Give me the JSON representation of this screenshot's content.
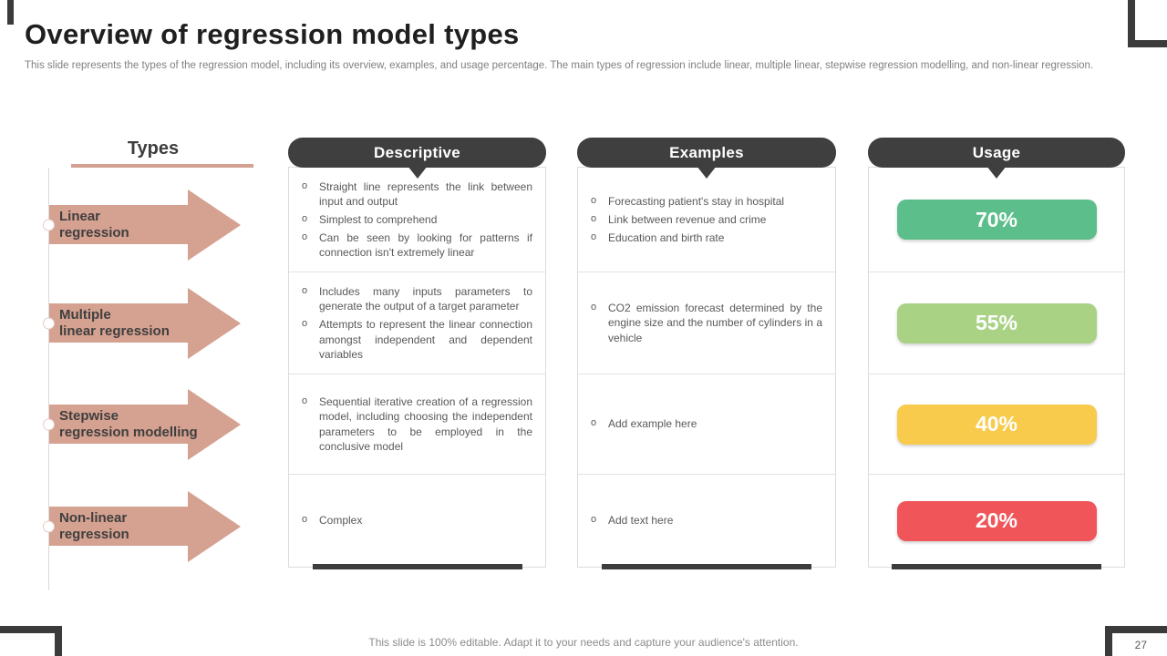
{
  "slide": {
    "title": "Overview of regression model types",
    "subtitle": "This slide represents the types of the regression model, including its overview, examples, and usage percentage. The main types of regression include linear, multiple linear, stepwise regression modelling, and non-linear regression.",
    "footer": "This slide is 100% editable. Adapt it to your needs and capture your audience's attention.",
    "page_number": "27"
  },
  "columns": {
    "types_header": "Types",
    "descriptive_header": "Descriptive",
    "examples_header": "Examples",
    "usage_header": "Usage"
  },
  "ui": {
    "bullet_marker": "o"
  },
  "colors": {
    "arrow_accent": "#d5a190",
    "header_dark": "#3f3f3f",
    "usage_70": "#5cbe8a",
    "usage_55": "#a9d285",
    "usage_40": "#f8cb4c",
    "usage_20": "#f0555a"
  },
  "rows": [
    {
      "type_line1": "Linear",
      "type_line2": "regression",
      "descriptive": [
        "Straight line represents the link between input and output",
        "Simplest to comprehend",
        "Can be seen by looking for patterns if connection isn't extremely linear"
      ],
      "examples": [
        "Forecasting patient's stay in hospital",
        "Link between revenue and crime",
        "Education and birth rate"
      ],
      "usage": "70%",
      "usage_color": "#5cbe8a"
    },
    {
      "type_line1": "Multiple",
      "type_line2": "linear regression",
      "descriptive": [
        "Includes many inputs parameters to generate the output of a target parameter",
        "Attempts to represent the linear connection amongst independent and dependent variables"
      ],
      "examples": [
        "CO2 emission forecast determined by the engine size and the number of cylinders in a vehicle"
      ],
      "usage": "55%",
      "usage_color": "#a9d285"
    },
    {
      "type_line1": "Stepwise",
      "type_line2": "regression modelling",
      "descriptive": [
        "Sequential iterative creation of a regression model, including choosing the independent parameters to be employed in the conclusive model"
      ],
      "examples": [
        "Add example here"
      ],
      "usage": "40%",
      "usage_color": "#f8cb4c"
    },
    {
      "type_line1": "Non-linear",
      "type_line2": "regression",
      "descriptive": [
        "Complex"
      ],
      "examples": [
        "Add text here"
      ],
      "usage": "20%",
      "usage_color": "#f0555a"
    }
  ]
}
